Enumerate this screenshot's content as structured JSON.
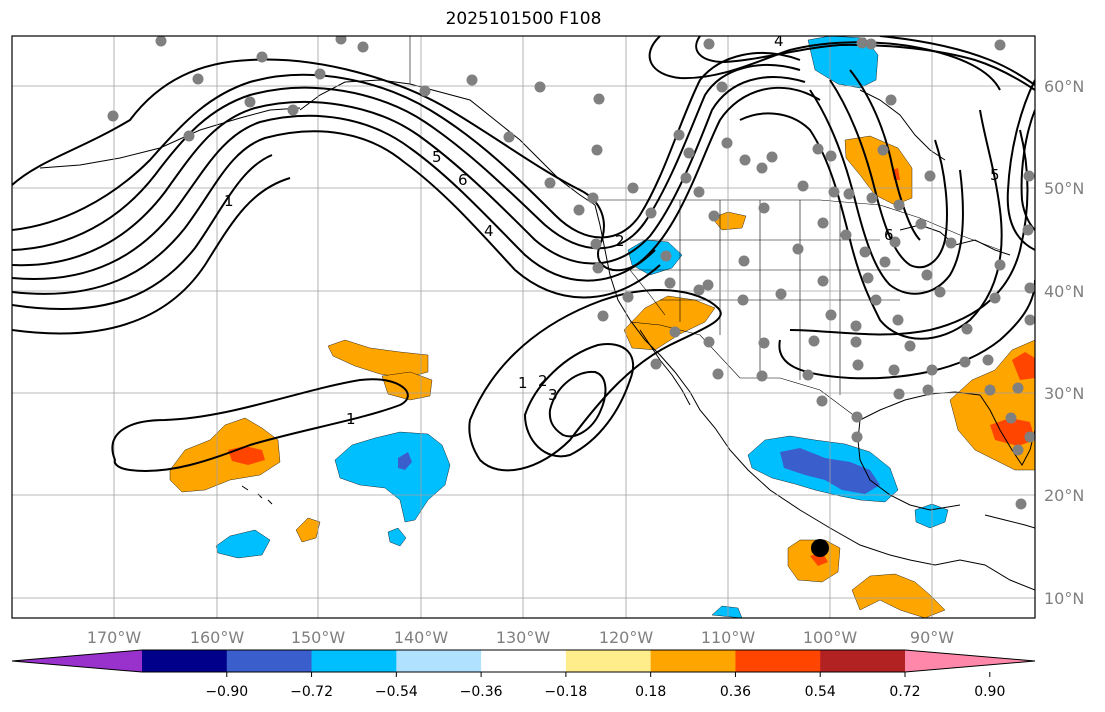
{
  "title": "2025101500 F108",
  "lon_labels": [
    "170°W",
    "160°W",
    "150°W",
    "140°W",
    "130°W",
    "120°W",
    "110°W",
    "100°W",
    "90°W"
  ],
  "lat_labels": [
    "60°N",
    "50°N",
    "40°N",
    "30°N",
    "20°N",
    "10°N"
  ],
  "colorbar": {
    "colors": [
      "#9932cc",
      "#00008b",
      "#3a5fcd",
      "#00bfff",
      "#b0e2ff",
      "#ffffff",
      "#ffec8b",
      "#ffa500",
      "#ff4500",
      "#b22222",
      "#ff88aa"
    ],
    "ticks": [
      "−0.90",
      "−0.72",
      "−0.54",
      "−0.36",
      "−0.18",
      "0.18",
      "0.36",
      "0.54",
      "0.72",
      "0.90"
    ]
  },
  "contour_labels": [
    "1",
    "5",
    "6",
    "4",
    "2",
    "1",
    "2",
    "3",
    "1",
    "6",
    "5",
    "4"
  ],
  "colors": {
    "land_line": "#000000",
    "grid": "#a0a0a0",
    "station": "#808080",
    "orange": "#ffa500",
    "red": "#ff4500",
    "blue": "#00bfff",
    "dblue": "#3a5fcd"
  }
}
